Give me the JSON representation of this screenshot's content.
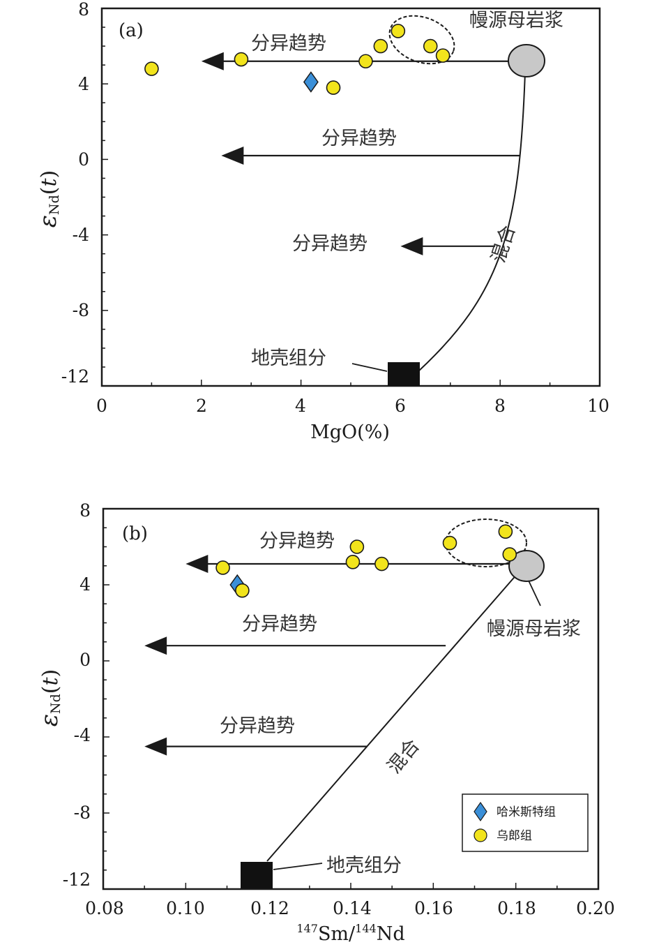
{
  "chart_data": [
    {
      "type": "scatter",
      "panel_label": "(a)",
      "xlabel": "MgO(%)",
      "ylabel": "εNd(t)",
      "xlim": [
        0,
        10
      ],
      "ylim": [
        -12,
        8
      ],
      "xticks": [
        "0",
        "2",
        "4",
        "6",
        "8",
        "10"
      ],
      "yticks": [
        "8",
        "4",
        "0",
        "-4",
        "-8",
        "-12"
      ],
      "series": [
        {
          "name": "哈米斯特组",
          "marker": "diamond",
          "color": "#3a8fd8",
          "points": [
            {
              "x": 4.2,
              "y": 4.1
            }
          ]
        },
        {
          "name": "乌郎组",
          "marker": "circle",
          "color": "#f2e41c",
          "points": [
            {
              "x": 1.0,
              "y": 4.8
            },
            {
              "x": 2.8,
              "y": 5.3
            },
            {
              "x": 4.65,
              "y": 3.8
            },
            {
              "x": 5.3,
              "y": 5.2
            },
            {
              "x": 5.6,
              "y": 6.0
            },
            {
              "x": 5.95,
              "y": 6.8
            },
            {
              "x": 6.6,
              "y": 6.0
            },
            {
              "x": 6.85,
              "y": 5.5
            }
          ]
        }
      ],
      "mantle_magma": {
        "label": "幔源母岩浆",
        "x": 8.5,
        "y": 5.1
      },
      "crust_component": {
        "label": "地壳组分",
        "x": 6.0,
        "y": -11.6
      },
      "mixing_label": "混合",
      "trend_label": "分异趋势",
      "trend_arrows": [
        {
          "from": {
            "x": 8.5,
            "y": 5.2
          },
          "to": {
            "x": 2.0,
            "y": 5.2
          }
        },
        {
          "from": {
            "x": 8.4,
            "y": 0.2
          },
          "to": {
            "x": 2.4,
            "y": 0.2
          }
        },
        {
          "from": {
            "x": 7.9,
            "y": -4.6
          },
          "to": {
            "x": 6.0,
            "y": -4.6
          }
        }
      ]
    },
    {
      "type": "scatter",
      "panel_label": "(b)",
      "xlabel": "147Sm/144Nd",
      "xlabel_parts": {
        "sup1": "147",
        "base1": "Sm/",
        "sup2": "144",
        "base2": "Nd"
      },
      "ylabel": "εNd(t)",
      "xlim": [
        0.08,
        0.2
      ],
      "ylim": [
        -12,
        8
      ],
      "xticks": [
        "0.08",
        "0.10",
        "0.12",
        "0.14",
        "0.16",
        "0.18",
        "0.20"
      ],
      "yticks": [
        "8",
        "4",
        "0",
        "-4",
        "-8",
        "-12"
      ],
      "series": [
        {
          "name": "哈米斯特组",
          "marker": "diamond",
          "color": "#3a8fd8",
          "points": [
            {
              "x": 0.1125,
              "y": 4.0
            }
          ]
        },
        {
          "name": "乌郎组",
          "marker": "circle",
          "color": "#f2e41c",
          "points": [
            {
              "x": 0.109,
              "y": 4.9
            },
            {
              "x": 0.1137,
              "y": 3.7
            },
            {
              "x": 0.1405,
              "y": 5.2
            },
            {
              "x": 0.1415,
              "y": 6.0
            },
            {
              "x": 0.1475,
              "y": 5.1
            },
            {
              "x": 0.164,
              "y": 6.2
            },
            {
              "x": 0.1775,
              "y": 6.8
            },
            {
              "x": 0.1785,
              "y": 5.6
            }
          ]
        }
      ],
      "mantle_magma": {
        "label": "幔源母岩浆",
        "x": 0.1825,
        "y": 5.0
      },
      "crust_component": {
        "label": "地壳组分",
        "x": 0.117,
        "y": -11.6
      },
      "mixing_label": "混合",
      "trend_label": "分异趋势",
      "trend_arrows": [
        {
          "from": {
            "x": 0.182,
            "y": 5.1
          },
          "to": {
            "x": 0.1,
            "y": 5.1
          }
        },
        {
          "from": {
            "x": 0.163,
            "y": 0.8
          },
          "to": {
            "x": 0.09,
            "y": 0.8
          }
        },
        {
          "from": {
            "x": 0.144,
            "y": -4.5
          },
          "to": {
            "x": 0.09,
            "y": -4.5
          }
        }
      ],
      "legend": {
        "position": "bottom-right",
        "entries": [
          {
            "label": "哈米斯特组",
            "marker": "diamond",
            "color": "#3a8fd8"
          },
          {
            "label": "乌郎组",
            "marker": "circle",
            "color": "#f2e41c"
          }
        ]
      }
    }
  ]
}
